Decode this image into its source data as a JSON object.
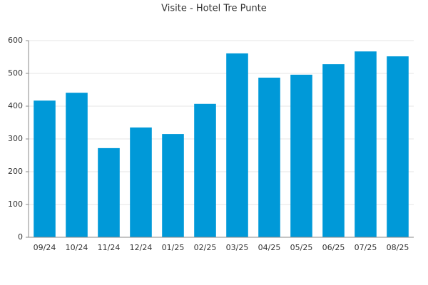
{
  "chart_data": {
    "type": "bar",
    "title": "Visite - Hotel Tre Punte",
    "categories": [
      "09/24",
      "10/24",
      "11/24",
      "12/24",
      "01/25",
      "02/25",
      "03/25",
      "04/25",
      "05/25",
      "06/25",
      "07/25",
      "08/25"
    ],
    "values": [
      417,
      441,
      272,
      335,
      315,
      407,
      561,
      487,
      496,
      528,
      567,
      552
    ],
    "color": "#0099d8",
    "ylim": [
      0,
      600
    ],
    "yticks": [
      0,
      100,
      200,
      300,
      400,
      500,
      600
    ],
    "grid": true
  }
}
